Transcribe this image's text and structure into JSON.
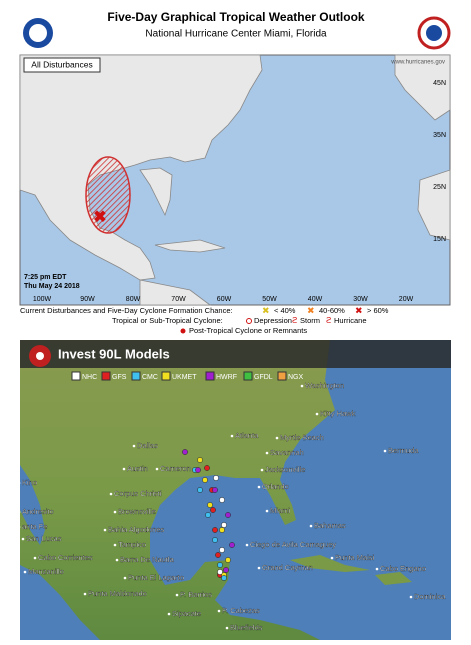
{
  "outlook": {
    "title": "Five-Day Graphical Tropical Weather Outlook",
    "subtitle": "National Hurricane Center Miami, Florida",
    "badge": "All Disturbances",
    "website": "www.hurricanes.gov",
    "time": "7:25 pm EDT",
    "date": "Thu May 24 2018",
    "longitudes": [
      "100W",
      "90W",
      "80W",
      "70W",
      "60W",
      "50W",
      "40W",
      "30W",
      "20W"
    ],
    "latitudes": [
      "45N",
      "35N",
      "25N",
      "15N"
    ],
    "legend": {
      "chance_heading": "Current Disturbances and Five-Day Cyclone Formation Chance:",
      "chances": [
        "< 40%",
        "40-60%",
        "> 60%"
      ],
      "cyclone_heading": "Tropical or Sub-Tropical Cyclone:",
      "cyclones": [
        "Depression",
        "Storm",
        "Hurricane"
      ],
      "post_tropical": "Post-Tropical Cyclone or Remnants"
    }
  },
  "models": {
    "title": "Invest 90L Models",
    "legend": [
      {
        "name": "NHC",
        "color": "#ffffff"
      },
      {
        "name": "GFS",
        "color": "#e02020"
      },
      {
        "name": "CMC",
        "color": "#40c0f0"
      },
      {
        "name": "UKMET",
        "color": "#f0e020"
      },
      {
        "name": "HWRF",
        "color": "#a020d0"
      },
      {
        "name": "GFDL",
        "color": "#40c040"
      },
      {
        "name": "NGX",
        "color": "#f0a040"
      }
    ],
    "cities": [
      "Washington",
      "Kitty Hawk",
      "Atlanta",
      "Myrtle Beach",
      "Dallas",
      "Savannah",
      "Bermuda",
      "Austin",
      "Cameron",
      "Jacksonville",
      "Orlando",
      "Kino",
      "Corpus Christi",
      "Miami",
      "Andresito",
      "Brownsville",
      "Bahia Algodones",
      "Bahamas",
      "anta Fe",
      "San Lucas",
      "Tampico",
      "Ciego de Avila Camaguey",
      "Punta Maisi",
      "Cabo Corrientes",
      "Barra De Nautla",
      "Manzanillo",
      "Grand Cayman",
      "Cabo Engano",
      "Punta El Lagarto",
      "Punta Maldonado",
      "P. Barrios",
      "P. Cabezas",
      "Sipacate",
      "Bluefields",
      "Dominica"
    ]
  }
}
